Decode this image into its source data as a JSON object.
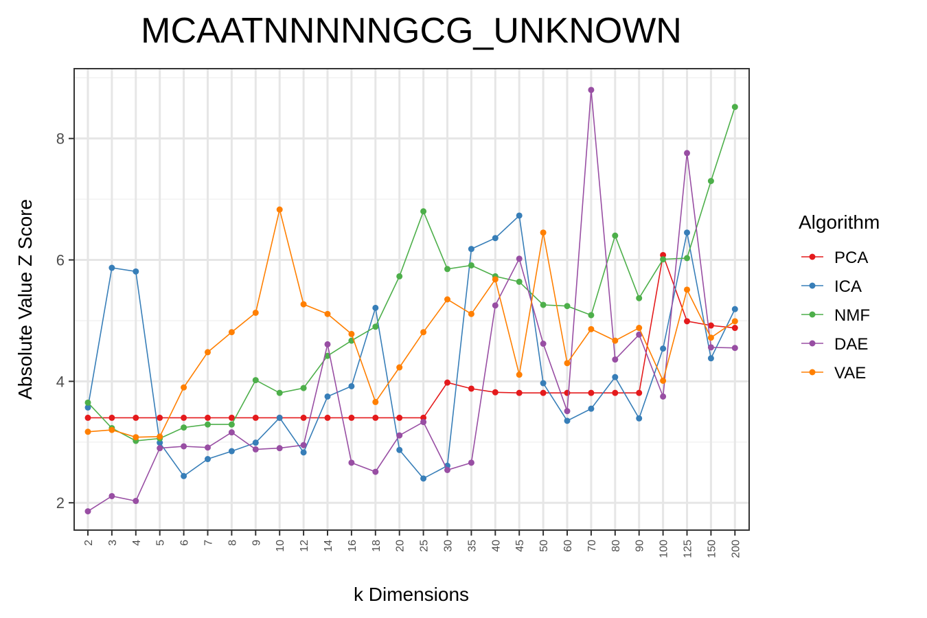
{
  "chart_data": {
    "type": "line",
    "title": "MCAATNNNNNGCG_UNKNOWN",
    "xlabel": "k Dimensions",
    "ylabel": "Absolute Value Z Score",
    "ylim": [
      1.55,
      9.15
    ],
    "yticks": [
      2,
      4,
      6,
      8
    ],
    "grid": true,
    "legend_title": "Algorithm",
    "legend_position": "right",
    "categories": [
      "2",
      "3",
      "4",
      "5",
      "6",
      "7",
      "8",
      "9",
      "10",
      "12",
      "14",
      "16",
      "18",
      "20",
      "25",
      "30",
      "35",
      "40",
      "45",
      "50",
      "60",
      "70",
      "80",
      "90",
      "100",
      "125",
      "150",
      "200"
    ],
    "series": [
      {
        "name": "PCA",
        "color": "#e41a1c",
        "values": [
          3.4,
          3.4,
          3.4,
          3.4,
          3.4,
          3.4,
          3.4,
          3.4,
          3.4,
          3.4,
          3.4,
          3.4,
          3.4,
          3.4,
          3.4,
          3.98,
          3.88,
          3.82,
          3.81,
          3.81,
          3.81,
          3.81,
          3.81,
          3.81,
          6.08,
          4.99,
          4.92,
          4.88
        ]
      },
      {
        "name": "ICA",
        "color": "#377eb8",
        "values": [
          3.57,
          5.87,
          5.81,
          2.99,
          2.44,
          2.72,
          2.85,
          2.99,
          3.4,
          2.83,
          3.75,
          3.92,
          5.21,
          2.87,
          2.4,
          2.61,
          6.18,
          6.36,
          6.73,
          3.97,
          3.35,
          3.55,
          4.07,
          3.39,
          4.54,
          6.45,
          4.38,
          5.19
        ]
      },
      {
        "name": "NMF",
        "color": "#4daf4a",
        "values": [
          3.65,
          3.23,
          3.02,
          3.06,
          3.24,
          3.29,
          3.29,
          4.02,
          3.81,
          3.89,
          4.42,
          4.67,
          4.9,
          5.73,
          6.8,
          5.85,
          5.91,
          5.73,
          5.64,
          5.26,
          5.24,
          5.09,
          6.4,
          5.37,
          6.01,
          6.03,
          7.3,
          8.52
        ]
      },
      {
        "name": "DAE",
        "color": "#984ea3",
        "values": [
          1.86,
          2.11,
          2.03,
          2.9,
          2.93,
          2.91,
          3.16,
          2.88,
          2.9,
          2.95,
          4.61,
          2.66,
          2.51,
          3.11,
          3.33,
          2.54,
          2.66,
          5.25,
          6.02,
          4.62,
          3.51,
          8.8,
          4.36,
          4.77,
          3.75,
          7.76,
          4.56,
          4.55
        ]
      },
      {
        "name": "VAE",
        "color": "#ff7f00",
        "values": [
          3.17,
          3.2,
          3.08,
          3.09,
          3.9,
          4.48,
          4.81,
          5.13,
          6.83,
          5.27,
          5.11,
          4.78,
          3.66,
          4.23,
          4.81,
          5.35,
          5.11,
          5.68,
          4.11,
          6.45,
          4.3,
          4.86,
          4.67,
          4.88,
          4.01,
          5.51,
          4.72,
          4.99
        ]
      }
    ]
  }
}
